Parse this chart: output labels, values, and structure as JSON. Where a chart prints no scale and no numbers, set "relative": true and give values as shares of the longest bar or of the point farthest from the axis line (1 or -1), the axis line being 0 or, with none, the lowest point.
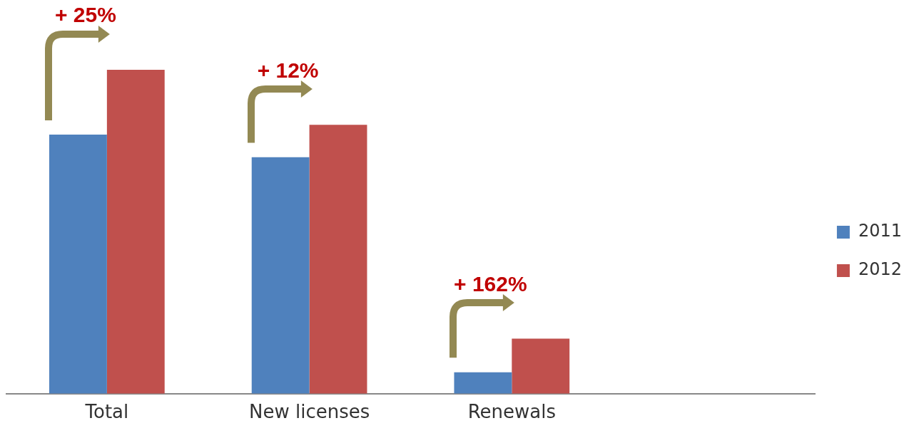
{
  "chart_data": {
    "type": "bar",
    "relative": true,
    "categories": [
      "Total",
      "New licenses",
      "Renewals",
      null
    ],
    "series": [
      {
        "name": "2011",
        "color": "#4f81bd",
        "values": [
          0.8,
          0.73,
          0.066,
          null
        ]
      },
      {
        "name": "2012",
        "color": "#c0504d",
        "values": [
          1,
          0.83,
          0.17,
          null
        ]
      }
    ],
    "annotations": [
      "+ 25%",
      "+ 12%",
      "+ 162%"
    ],
    "legend": "right",
    "grid": false
  }
}
